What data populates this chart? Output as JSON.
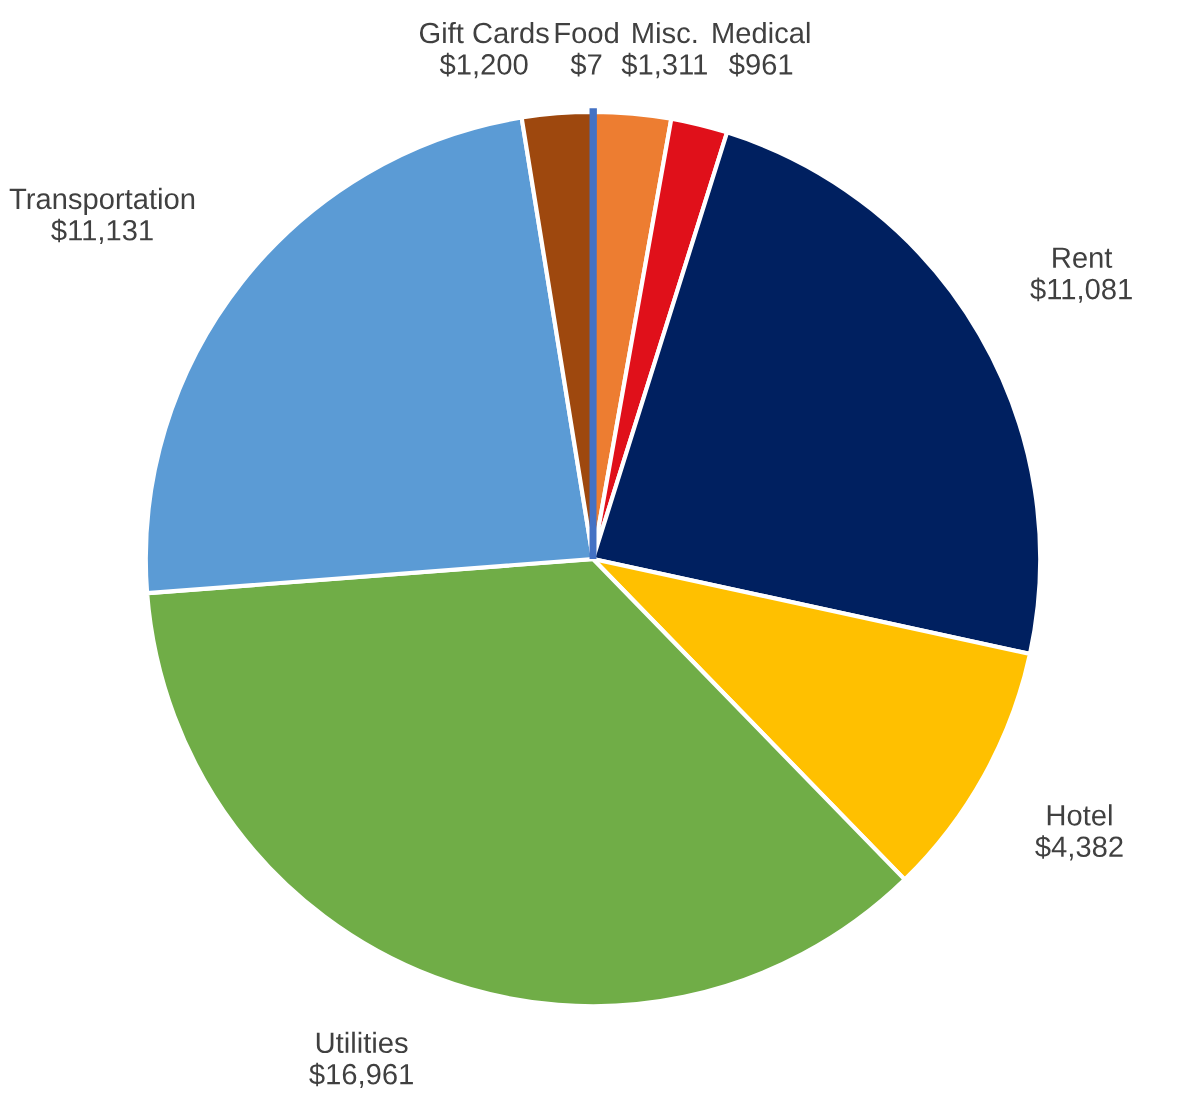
{
  "chart_data": {
    "type": "pie",
    "categories": [
      "Food",
      "Misc.",
      "Medical",
      "Rent",
      "Hotel",
      "Utilities",
      "Transportation",
      "Gift Cards"
    ],
    "values": [
      7,
      1311,
      961,
      11081,
      4382,
      16961,
      11131,
      1200
    ],
    "value_labels": [
      "$7",
      "$1,311",
      "$961",
      "$11,081",
      "$4,382",
      "$16,961",
      "$11,131",
      "$1,200"
    ],
    "colors": [
      "#4472c4",
      "#ed7d31",
      "#e0101a",
      "#002060",
      "#ffc000",
      "#70ad47",
      "#5b9bd5",
      "#9e480e"
    ],
    "legend": false
  }
}
